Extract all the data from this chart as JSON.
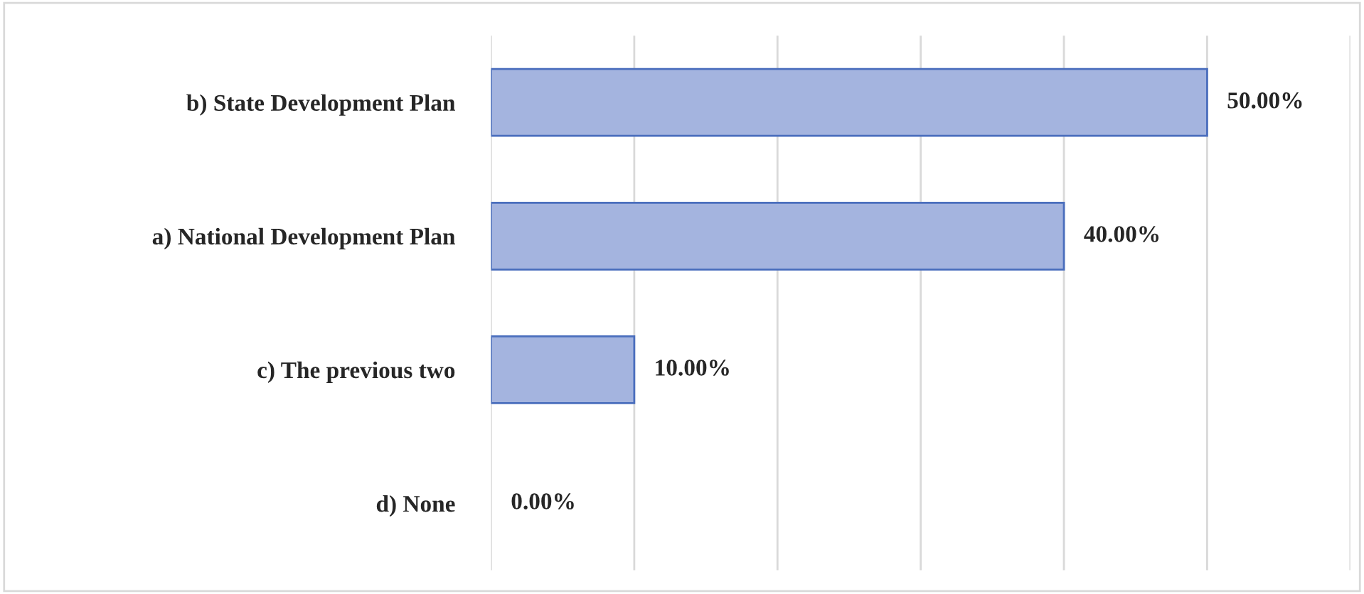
{
  "chart_data": {
    "type": "bar",
    "orientation": "horizontal",
    "categories": [
      "b) State Development Plan",
      "a) National Development Plan",
      "c) The previous two",
      "d) None"
    ],
    "values": [
      50,
      40,
      10,
      0
    ],
    "value_labels": [
      "50.00%",
      "40.00%",
      "10.00%",
      "0.00%"
    ],
    "color": "#a4b4df",
    "xlim": [
      0,
      60
    ],
    "xticks": [
      {
        "value": 0,
        "label": null
      },
      {
        "value": 10,
        "label": null
      },
      {
        "value": 20,
        "label": null
      },
      {
        "value": 30,
        "label": null
      },
      {
        "value": 40,
        "label": null
      },
      {
        "value": 50,
        "label": null
      },
      {
        "value": 60,
        "label": null
      }
    ],
    "tick_labels": "y",
    "grid": "x",
    "legend": false
  }
}
